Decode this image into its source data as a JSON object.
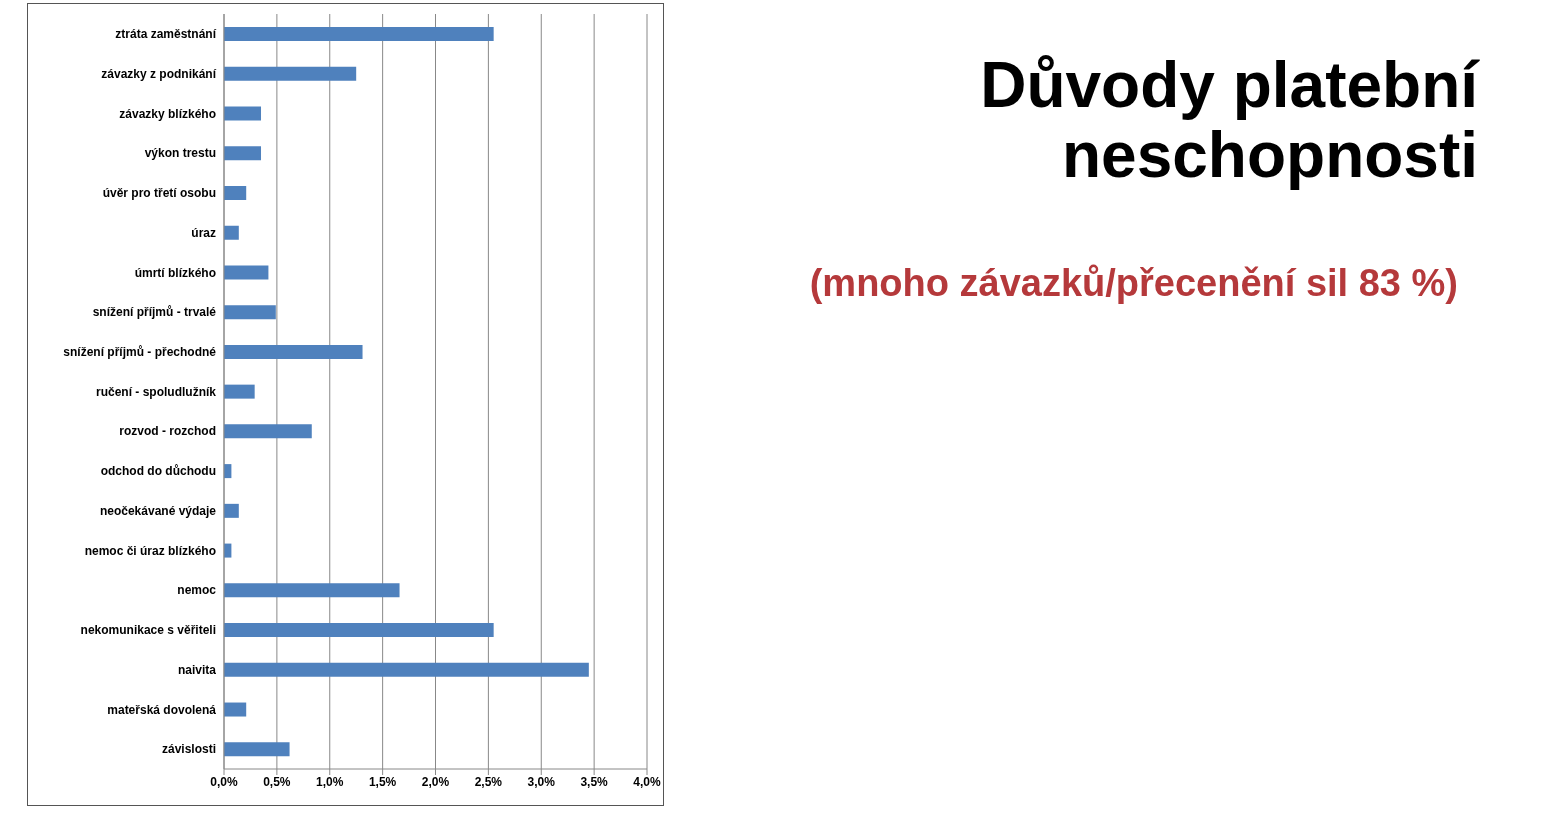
{
  "chart_data": {
    "type": "bar",
    "orientation": "horizontal",
    "title": "Důvody platební neschopnosti",
    "subtitle": "(mnoho závazků/přecenění sil 83 %)",
    "categories": [
      "ztráta zaměstnání",
      "závazky z podnikání",
      "závazky blízkého",
      "výkon trestu",
      "úvěr pro třetí osobu",
      "úraz",
      "úmrtí blízkého",
      "snížení příjmů - trvalé",
      "snížení příjmů - přechodné",
      "ručení - spoludlužník",
      "rozvod - rozchod",
      "odchod do důchodu",
      "neočekávané výdaje",
      "nemoc či úraz blízkého",
      "nemoc",
      "nekomunikace s věřiteli",
      "naivita",
      "mateřská dovolená",
      "závislosti"
    ],
    "values": [
      2.55,
      1.25,
      0.35,
      0.35,
      0.21,
      0.14,
      0.42,
      0.49,
      1.31,
      0.29,
      0.83,
      0.07,
      0.14,
      0.07,
      1.66,
      2.55,
      3.45,
      0.21,
      0.62
    ],
    "color": "#4f81bd",
    "xlim": [
      0,
      4
    ],
    "xticks": [
      {
        "value": 0,
        "label": "0,0%"
      },
      {
        "value": 0.5,
        "label": "0,5%"
      },
      {
        "value": 1,
        "label": "1,0%"
      },
      {
        "value": 1.5,
        "label": "1,5%"
      },
      {
        "value": 2,
        "label": "2,0%"
      },
      {
        "value": 2.5,
        "label": "2,5%"
      },
      {
        "value": 3,
        "label": "3,0%"
      },
      {
        "value": 3.5,
        "label": "3,5%"
      },
      {
        "value": 4,
        "label": "4,0%"
      }
    ],
    "grid": "x",
    "legend": false
  }
}
